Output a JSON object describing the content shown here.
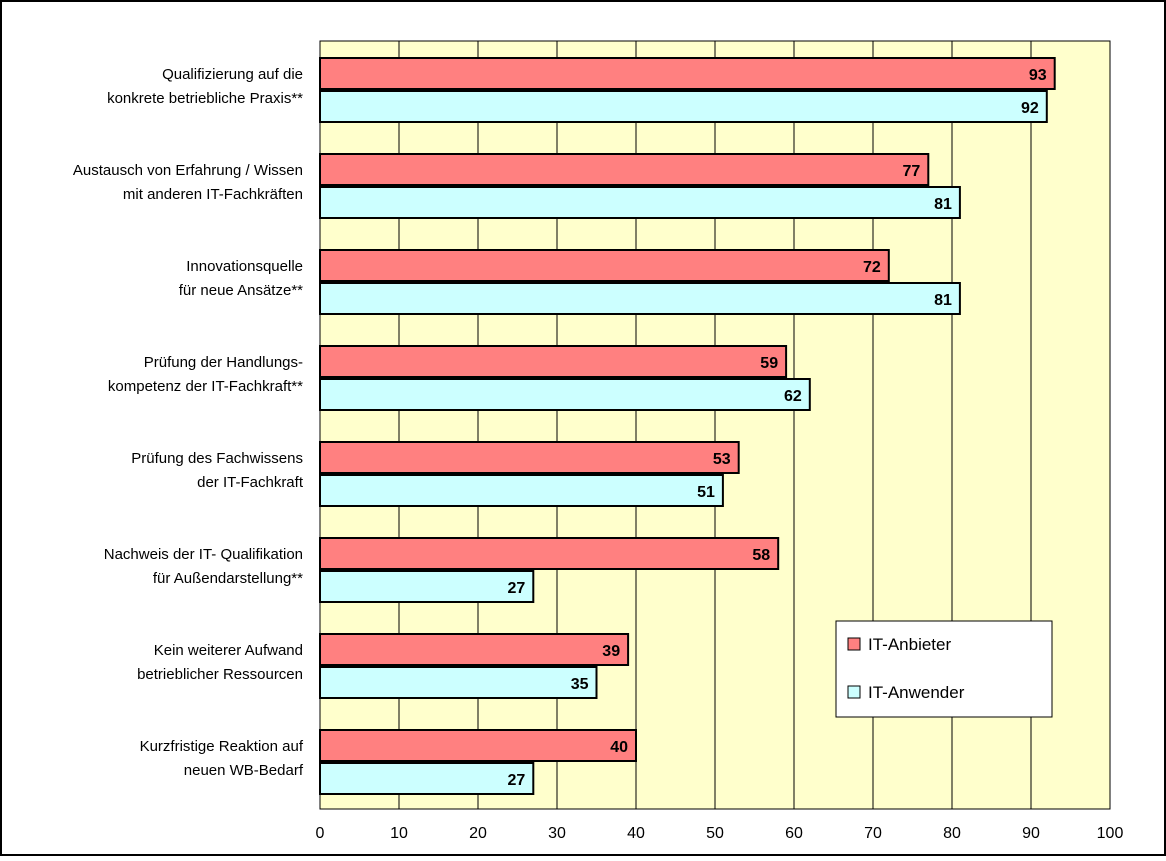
{
  "chart_data": {
    "type": "bar",
    "orientation": "horizontal",
    "categories": [
      [
        "Qualifizierung auf die",
        "konkrete betriebliche Praxis**"
      ],
      [
        "Austausch von Erfahrung / Wissen",
        "mit anderen IT-Fachkräften"
      ],
      [
        "Innovationsquelle",
        "für neue Ansätze**"
      ],
      [
        "Prüfung der Handlungs-",
        "kompetenz der IT-Fachkraft**"
      ],
      [
        "Prüfung des Fachwissens",
        "der IT-Fachkraft"
      ],
      [
        "Nachweis der IT- Qualifikation",
        "für Außendarstellung**"
      ],
      [
        "Kein weiterer Aufwand",
        "betrieblicher Ressourcen"
      ],
      [
        "Kurzfristige Reaktion auf",
        "neuen WB-Bedarf"
      ]
    ],
    "series": [
      {
        "name": "IT-Anbieter",
        "values": [
          93,
          77,
          72,
          59,
          53,
          58,
          39,
          40
        ],
        "color": "#ff8080"
      },
      {
        "name": "IT-Anwender",
        "values": [
          92,
          81,
          81,
          62,
          51,
          27,
          35,
          27
        ],
        "color": "#ccffff"
      }
    ],
    "xlim": [
      0,
      100
    ],
    "xticks": [
      0,
      10,
      20,
      30,
      40,
      50,
      60,
      70,
      80,
      90,
      100
    ],
    "grid": true,
    "plot_background": "#ffffcc",
    "data_labels": true,
    "legend_position": "bottom-right"
  }
}
